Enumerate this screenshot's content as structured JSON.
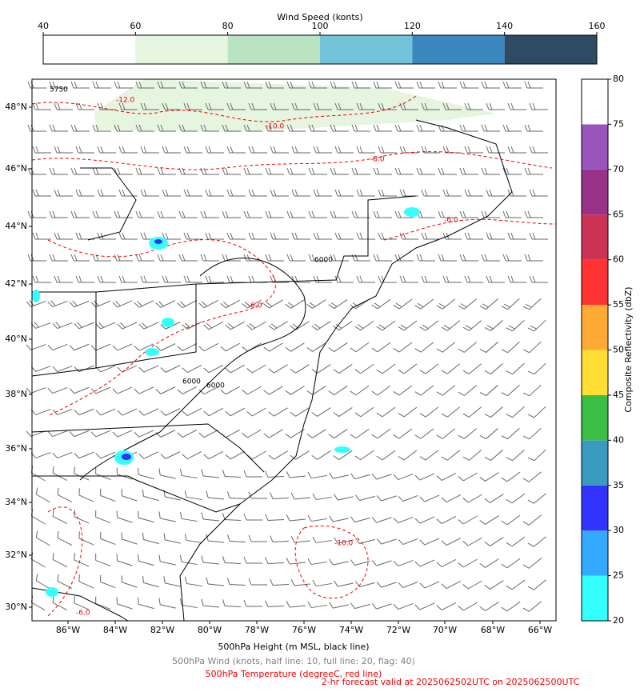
{
  "wind_colorbar": {
    "title": "Wind Speed (konts)",
    "ticks": [
      40,
      60,
      80,
      100,
      120,
      140,
      160
    ],
    "colors": [
      "#ffffff",
      "#e5f5e0",
      "#b9e3c1",
      "#74c4d9",
      "#3b88c1",
      "#2f4b64"
    ]
  },
  "reflectivity_colorbar": {
    "label": "Composite Reflectivity (dbZ)",
    "ticks": [
      20,
      25,
      30,
      35,
      40,
      45,
      50,
      55,
      60,
      65,
      70,
      75,
      80
    ],
    "colors": [
      "#33ffff",
      "#33aaff",
      "#3333ff",
      "#3a9abf",
      "#3abf44",
      "#ffdd33",
      "#ffaa33",
      "#ff3333",
      "#cc3355",
      "#993388",
      "#9955bb",
      "#ffffff"
    ]
  },
  "map": {
    "latitude_labels": [
      "48°N",
      "46°N",
      "44°N",
      "42°N",
      "40°N",
      "38°N",
      "36°N",
      "34°N",
      "32°N",
      "30°N"
    ],
    "longitude_labels": [
      "86°W",
      "84°W",
      "82°W",
      "80°W",
      "78°W",
      "76°W",
      "74°W",
      "72°W",
      "70°W",
      "68°W",
      "66°W"
    ],
    "contour_labels": [
      "5750",
      "-12.0",
      "-10.0",
      "-8.0",
      "6000",
      "-6.0",
      "-6.0",
      "6000",
      "6000",
      "-10.0",
      "-6.0"
    ]
  },
  "captions": {
    "height": "500hPa Height (m MSL, black line)",
    "wind": "500hPa Wind (knots, half line: 10, full line: 20, flag: 40)",
    "temperature": "500hPa Temperature (degreeC, red line)",
    "forecast": "2-hr forecast valid at 2025062502UTC on 2025062500UTC"
  }
}
